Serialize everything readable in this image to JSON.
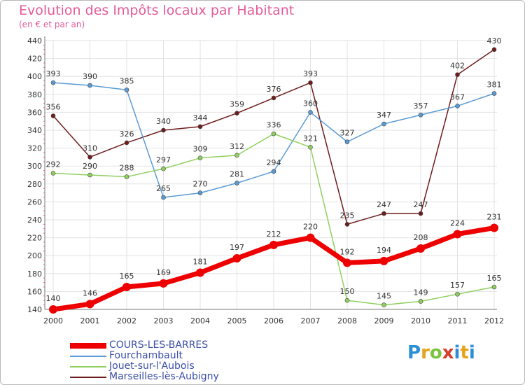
{
  "title": "Evolution des Impôts locaux par Habitant",
  "subtitle": "(en € et par an)",
  "brand": {
    "letters": [
      "P",
      "r",
      "o",
      "x",
      "i",
      "t",
      "i"
    ]
  },
  "chart_data": {
    "type": "line",
    "x": [
      "2000",
      "2001",
      "2002",
      "2003",
      "2004",
      "2005",
      "2006",
      "2007",
      "2008",
      "2009",
      "2010",
      "2011",
      "2012"
    ],
    "ylim": [
      140,
      440
    ],
    "yticks": [
      140,
      160,
      180,
      200,
      220,
      240,
      260,
      280,
      300,
      320,
      340,
      360,
      380,
      400,
      420,
      440
    ],
    "grid": true,
    "legend": "bottom-left",
    "series": [
      {
        "name": "Marseilles-lès-Aubigny",
        "color": "#6e1c1c",
        "width": 1.5,
        "values": [
          356,
          310,
          326,
          340,
          344,
          359,
          376,
          393,
          235,
          247,
          247,
          402,
          430
        ]
      },
      {
        "name": "Fourchambault",
        "color": "#5b9bd5",
        "width": 1.5,
        "values": [
          393,
          390,
          385,
          265,
          270,
          281,
          294,
          360,
          327,
          347,
          357,
          367,
          381
        ]
      },
      {
        "name": "Jouet-sur-l'Aubois",
        "color": "#90d060",
        "width": 1.5,
        "values": [
          292,
          290,
          288,
          297,
          309,
          312,
          336,
          321,
          150,
          145,
          149,
          157,
          165
        ]
      },
      {
        "name": "COURS-LES-BARRES",
        "color": "#ee0000",
        "width": 7,
        "values": [
          140,
          146,
          165,
          169,
          181,
          197,
          212,
          220,
          192,
          194,
          208,
          224,
          231
        ]
      }
    ],
    "legend_order": [
      "COURS-LES-BARRES",
      "Fourchambault",
      "Jouet-sur-l'Aubois",
      "Marseilles-lès-Aubigny"
    ]
  }
}
